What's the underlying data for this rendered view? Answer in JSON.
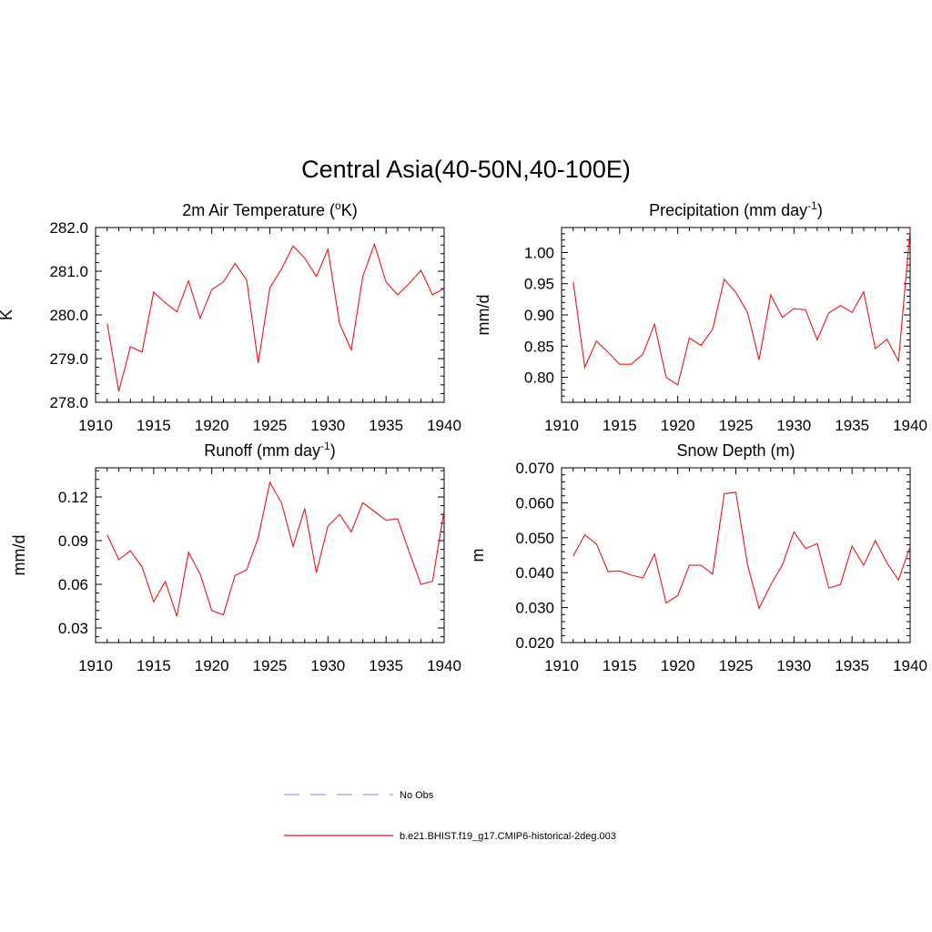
{
  "figure": {
    "title": "Central Asia(40-50N,40-100E)"
  },
  "colors": {
    "series": "#e8141b",
    "obs": "#9999ee",
    "axis": "#000000"
  },
  "legend": {
    "placement": "bottom-center",
    "items": [
      {
        "label": "No Obs",
        "style": "dashed",
        "color": "#9999ee"
      },
      {
        "label": "b.e21.BHIST.f19_g17.CMIP6-historical-2deg.003",
        "style": "solid",
        "color": "#e8141b"
      }
    ]
  },
  "chart_data": [
    {
      "type": "line",
      "title": "2m Air Temperature (",
      "title_sup": "o",
      "title_after": "K)",
      "ylabel": "K",
      "xlim": [
        1910,
        1940
      ],
      "ylim": [
        278.0,
        282.0
      ],
      "xticks": [
        1910,
        1915,
        1920,
        1925,
        1930,
        1935,
        1940
      ],
      "yticks": [
        278.0,
        279.0,
        280.0,
        281.0,
        282.0
      ],
      "ytick_labels": [
        "278.0",
        "279.0",
        "280.0",
        "281.0",
        "282.0"
      ],
      "series": [
        {
          "x": [
            1911,
            1912,
            1913,
            1914,
            1915,
            1916,
            1917,
            1918,
            1919,
            1920,
            1921,
            1922,
            1923,
            1924,
            1925,
            1926,
            1927,
            1928,
            1929,
            1930,
            1931,
            1932,
            1933,
            1934,
            1935,
            1936,
            1937,
            1938,
            1939,
            1940
          ],
          "values": [
            279.8,
            278.25,
            279.27,
            279.15,
            280.52,
            280.28,
            280.07,
            280.78,
            279.92,
            280.58,
            280.75,
            281.18,
            280.8,
            278.9,
            280.62,
            281.05,
            281.58,
            281.3,
            280.88,
            281.5,
            279.8,
            279.2,
            280.88,
            281.62,
            280.75,
            280.46,
            280.72,
            281.02,
            280.46,
            280.6
          ]
        }
      ]
    },
    {
      "type": "line",
      "title": "Precipitation (mm day",
      "title_sup": "-1",
      "title_after": ")",
      "ylabel": "mm/d",
      "xlim": [
        1910,
        1940
      ],
      "ylim": [
        0.76,
        1.04
      ],
      "xticks": [
        1910,
        1915,
        1920,
        1925,
        1930,
        1935,
        1940
      ],
      "yticks": [
        0.8,
        0.85,
        0.9,
        0.95,
        1.0
      ],
      "ytick_labels": [
        "0.80",
        "0.85",
        "0.90",
        "0.95",
        "1.00"
      ],
      "series": [
        {
          "x": [
            1911,
            1912,
            1913,
            1914,
            1915,
            1916,
            1917,
            1918,
            1919,
            1920,
            1921,
            1922,
            1923,
            1924,
            1925,
            1926,
            1927,
            1928,
            1929,
            1930,
            1931,
            1932,
            1933,
            1934,
            1935,
            1936,
            1937,
            1938,
            1939,
            1940
          ],
          "values": [
            0.953,
            0.816,
            0.858,
            0.84,
            0.821,
            0.821,
            0.837,
            0.885,
            0.8,
            0.788,
            0.863,
            0.851,
            0.877,
            0.957,
            0.936,
            0.904,
            0.828,
            0.932,
            0.896,
            0.91,
            0.908,
            0.86,
            0.903,
            0.915,
            0.904,
            0.937,
            0.846,
            0.861,
            0.826,
            1.037
          ]
        }
      ]
    },
    {
      "type": "line",
      "title": "Runoff (mm day",
      "title_sup": "-1",
      "title_after": ")",
      "ylabel": "mm/d",
      "xlim": [
        1910,
        1940
      ],
      "ylim": [
        0.02,
        0.14
      ],
      "xticks": [
        1910,
        1915,
        1920,
        1925,
        1930,
        1935,
        1940
      ],
      "yticks": [
        0.03,
        0.06,
        0.09,
        0.12
      ],
      "ytick_labels": [
        "0.03",
        "0.06",
        "0.09",
        "0.12"
      ],
      "series": [
        {
          "x": [
            1911,
            1912,
            1913,
            1914,
            1915,
            1916,
            1917,
            1918,
            1919,
            1920,
            1921,
            1922,
            1923,
            1924,
            1925,
            1926,
            1927,
            1928,
            1929,
            1930,
            1931,
            1932,
            1933,
            1934,
            1935,
            1936,
            1937,
            1938,
            1939,
            1940
          ],
          "values": [
            0.094,
            0.077,
            0.083,
            0.072,
            0.048,
            0.062,
            0.038,
            0.082,
            0.067,
            0.042,
            0.039,
            0.066,
            0.07,
            0.092,
            0.13,
            0.116,
            0.086,
            0.112,
            0.068,
            0.1,
            0.108,
            0.096,
            0.116,
            0.11,
            0.104,
            0.105,
            0.082,
            0.06,
            0.062,
            0.111
          ]
        }
      ]
    },
    {
      "type": "line",
      "title": "Snow Depth (m)",
      "title_sup": "",
      "title_after": "",
      "ylabel": "m",
      "xlim": [
        1910,
        1940
      ],
      "ylim": [
        0.02,
        0.07
      ],
      "xticks": [
        1910,
        1915,
        1920,
        1925,
        1930,
        1935,
        1940
      ],
      "yticks": [
        0.02,
        0.03,
        0.04,
        0.05,
        0.06,
        0.07
      ],
      "ytick_labels": [
        "0.020",
        "0.030",
        "0.040",
        "0.050",
        "0.060",
        "0.070"
      ],
      "series": [
        {
          "x": [
            1911,
            1912,
            1913,
            1914,
            1915,
            1916,
            1917,
            1918,
            1919,
            1920,
            1921,
            1922,
            1923,
            1924,
            1925,
            1926,
            1927,
            1928,
            1929,
            1930,
            1931,
            1932,
            1933,
            1934,
            1935,
            1936,
            1937,
            1938,
            1939,
            1940
          ],
          "values": [
            0.0448,
            0.0508,
            0.0482,
            0.0403,
            0.0405,
            0.0393,
            0.0385,
            0.0453,
            0.0313,
            0.0335,
            0.0421,
            0.0421,
            0.0396,
            0.0626,
            0.063,
            0.0423,
            0.0298,
            0.0365,
            0.0422,
            0.0517,
            0.0469,
            0.0483,
            0.0356,
            0.0366,
            0.0476,
            0.0421,
            0.0492,
            0.0428,
            0.0379,
            0.0475
          ]
        }
      ]
    }
  ]
}
